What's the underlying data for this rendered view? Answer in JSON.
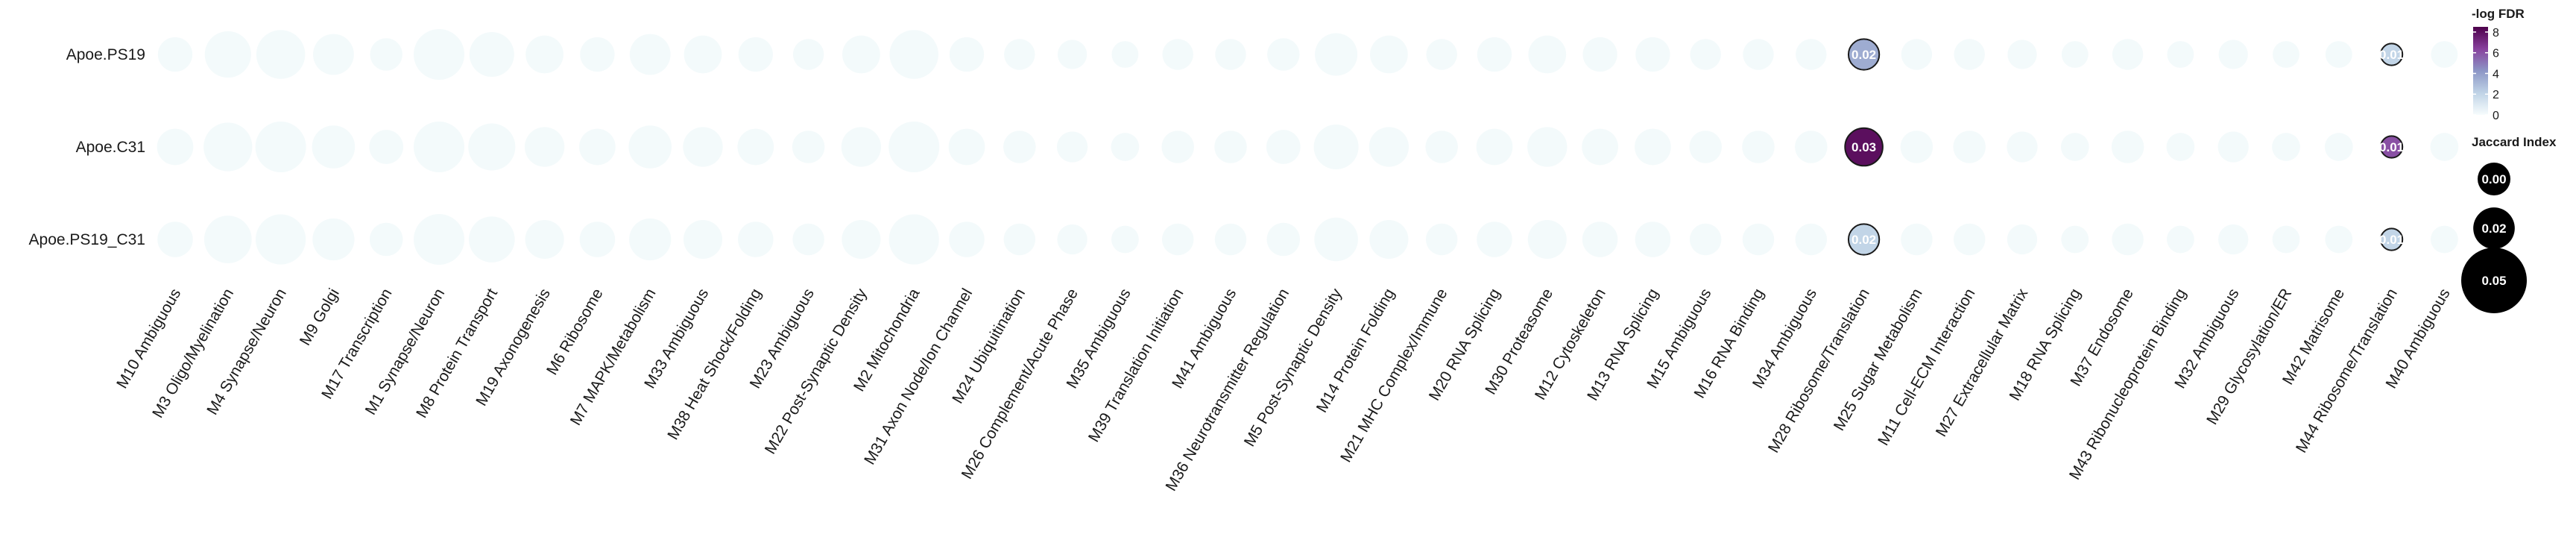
{
  "chart_data": {
    "type": "bubble-grid",
    "rows": [
      "Apoe.PS19",
      "Apoe.C31",
      "Apoe.PS19_C31"
    ],
    "columns": [
      "M10 Ambiguous",
      "M3 Oligo/Myelination",
      "M4 Synapse/Neuron",
      "M9 Golgi",
      "M17 Transcription",
      "M1 Synapse/Neuron",
      "M8 Protein Transport",
      "M19 Axonogenesis",
      "M6 Ribosome",
      "M7 MAPK/Metabolism",
      "M33 Ambiguous",
      "M38 Heat Shock/Folding",
      "M23 Ambiguous",
      "M22 Post-Synaptic Density",
      "M2 Mitochondria",
      "M31 Axon Node/Ion Channel",
      "M24 Ubiquitination",
      "M26 Complement/Acute Phase",
      "M35 Ambiguous",
      "M39 Translation Initiation",
      "M41 Ambiguous",
      "M36 Neurotransmitter Regulation",
      "M5 Post-Synaptic Density",
      "M14 Protein Folding",
      "M21 MHC Complex/Immune",
      "M20 RNA Splicing",
      "M30 Proteasome",
      "M12 Cytoskeleton",
      "M13 RNA Splicing",
      "M15 Ambiguous",
      "M16 RNA Binding",
      "M34 Ambiguous",
      "M28 Ribosome/Translation",
      "M25 Sugar Metabolism",
      "M11 Cell-ECM Interaction",
      "M27 Extracellular Matrix",
      "M18 RNA Splicing",
      "M37 Endosome",
      "M43 Ribonucleoprotein Binding",
      "M32 Ambiguous",
      "M29 Glycosylation/ER",
      "M42 Matrisome",
      "M44 Ribosome/Translation",
      "M40 Ambiguous"
    ],
    "column_base_size": [
      0.025,
      0.045,
      0.05,
      0.035,
      0.022,
      0.07,
      0.042,
      0.03,
      0.025,
      0.035,
      0.03,
      0.025,
      0.02,
      0.03,
      0.05,
      0.025,
      0.02,
      0.018,
      0.015,
      0.02,
      0.02,
      0.022,
      0.038,
      0.03,
      0.02,
      0.025,
      0.03,
      0.025,
      0.025,
      0.02,
      0.02,
      0.02,
      0.025,
      0.02,
      0.02,
      0.018,
      0.015,
      0.02,
      0.015,
      0.018,
      0.015,
      0.015,
      0.02,
      0.015
    ],
    "row_size_scale": [
      0.95,
      1.05,
      1.0
    ],
    "highlighted": [
      {
        "row": "Apoe.PS19",
        "column": "M28 Ribosome/Translation",
        "jaccard": 0.02,
        "neg_log_fdr": 3.5,
        "label": "0.02"
      },
      {
        "row": "Apoe.PS19",
        "column": "M44 Ribosome/Translation",
        "jaccard": 0.01,
        "neg_log_fdr": 2.0,
        "label": "0.01"
      },
      {
        "row": "Apoe.C31",
        "column": "M28 Ribosome/Translation",
        "jaccard": 0.03,
        "neg_log_fdr": 8.0,
        "label": "0.03"
      },
      {
        "row": "Apoe.C31",
        "column": "M44 Ribosome/Translation",
        "jaccard": 0.01,
        "neg_log_fdr": 6.0,
        "label": "0.01"
      },
      {
        "row": "Apoe.PS19_C31",
        "column": "M28 Ribosome/Translation",
        "jaccard": 0.02,
        "neg_log_fdr": 2.0,
        "label": "0.02"
      },
      {
        "row": "Apoe.PS19_C31",
        "column": "M44 Ribosome/Translation",
        "jaccard": 0.01,
        "neg_log_fdr": 2.0,
        "label": "0.01"
      }
    ],
    "color_legend": {
      "title": "-log FDR",
      "ticks": [
        0,
        2,
        4,
        6,
        8
      ],
      "range": [
        0,
        8.5
      ],
      "colors": [
        "#f7fcfd",
        "#bfd3e6",
        "#8c96c6",
        "#88419d",
        "#4d004b"
      ]
    },
    "size_legend": {
      "title": "Jaccard Index",
      "values": [
        0.0,
        0.02,
        0.05
      ],
      "labels": [
        "0.00",
        "0.02",
        "0.05"
      ]
    },
    "faint_fill": "#f3fafb"
  }
}
